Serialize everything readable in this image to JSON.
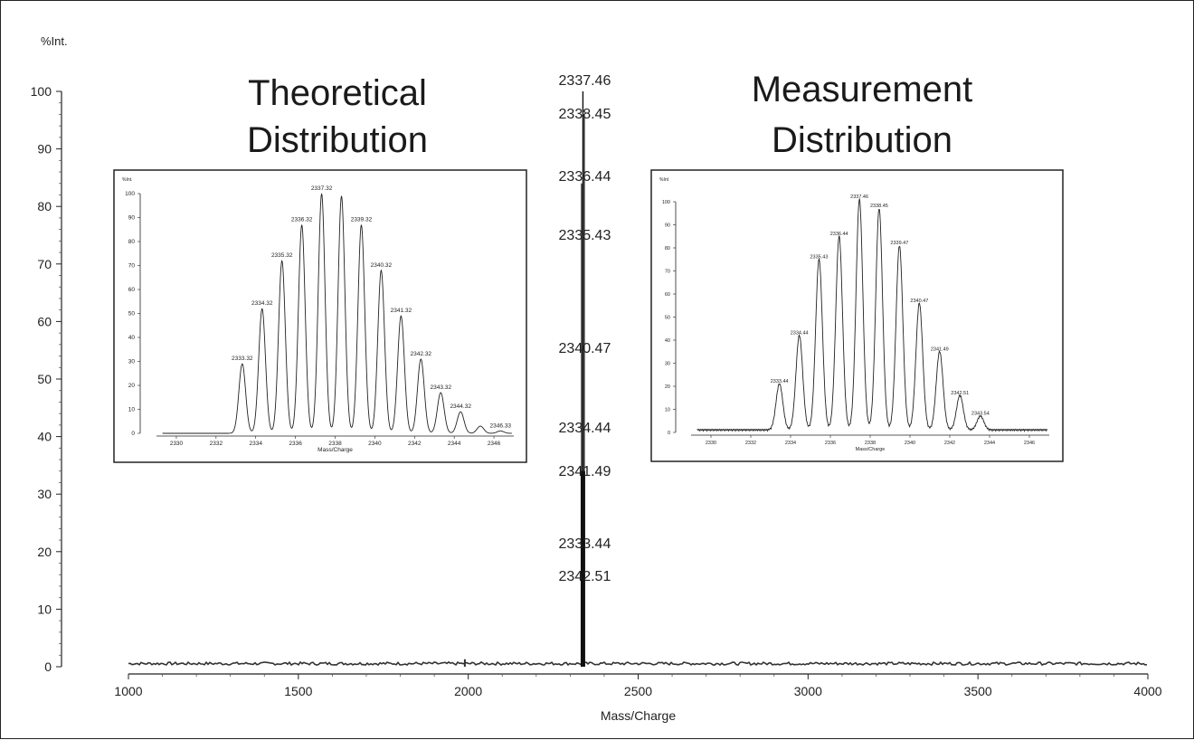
{
  "main_chart": {
    "y_unit_label": "%Int.",
    "xlabel": "Mass/Charge",
    "xticks": [
      1000,
      1500,
      2000,
      2500,
      3000,
      3500,
      4000
    ],
    "yticks": [
      0,
      10,
      20,
      30,
      40,
      50,
      60,
      70,
      80,
      90,
      100
    ],
    "xlim": [
      1000,
      4000
    ],
    "ylim": [
      0,
      100
    ]
  },
  "titles": {
    "theoretical": [
      "Theoretical",
      "Distribution"
    ],
    "measurement": [
      "Measurement",
      "Distribution"
    ]
  },
  "chart_data": [
    {
      "type": "line",
      "xlabel": "Mass/Charge",
      "ylabel": "%Int.",
      "xlim": [
        1000,
        4000
      ],
      "ylim": [
        0,
        100
      ],
      "peak_labels": [
        {
          "label": "2337.46",
          "value": 100
        },
        {
          "label": "2338.45",
          "value": 96
        },
        {
          "label": "2336.44",
          "value": 84
        },
        {
          "label": "2335.43",
          "value": 74
        },
        {
          "label": "2340.47",
          "value": 54
        },
        {
          "label": "2334.44",
          "value": 41
        },
        {
          "label": "2341.49",
          "value": 34
        },
        {
          "label": "2333.44",
          "value": 21
        },
        {
          "label": "2342.51",
          "value": 16
        }
      ],
      "peak_center": 2337.46,
      "baseline_level": 0.3
    },
    {
      "type": "line",
      "title": "Theoretical Distribution",
      "xlabel": "Mass/Charge",
      "ylabel": "%Int.",
      "xlim": [
        2329,
        2347
      ],
      "ylim": [
        0,
        100
      ],
      "xticks": [
        2330,
        2332,
        2334,
        2336,
        2338,
        2340,
        2342,
        2344,
        2346
      ],
      "yticks": [
        0,
        10,
        20,
        30,
        40,
        50,
        60,
        70,
        80,
        90,
        100
      ],
      "peaks": [
        {
          "x": 2333.32,
          "y": 29,
          "label": "2333.32"
        },
        {
          "x": 2334.32,
          "y": 52,
          "label": "2334.32"
        },
        {
          "x": 2335.32,
          "y": 72,
          "label": "2335.32"
        },
        {
          "x": 2336.32,
          "y": 87,
          "label": "2336.32"
        },
        {
          "x": 2337.32,
          "y": 100,
          "label": "2337.32"
        },
        {
          "x": 2338.32,
          "y": 99,
          "label": ""
        },
        {
          "x": 2339.32,
          "y": 87,
          "label": "2339.32"
        },
        {
          "x": 2340.32,
          "y": 68,
          "label": "2340.32"
        },
        {
          "x": 2341.32,
          "y": 49,
          "label": "2341.32"
        },
        {
          "x": 2342.32,
          "y": 31,
          "label": "2342.32"
        },
        {
          "x": 2343.32,
          "y": 17,
          "label": "2343.32"
        },
        {
          "x": 2344.32,
          "y": 9,
          "label": "2344.32"
        },
        {
          "x": 2345.32,
          "y": 3,
          "label": ""
        },
        {
          "x": 2346.33,
          "y": 1,
          "label": "2346.33"
        }
      ]
    },
    {
      "type": "line",
      "title": "Measurement Distribution",
      "xlabel": "Mass/Charge",
      "ylabel": "%Int",
      "xlim": [
        2329,
        2347
      ],
      "ylim": [
        0,
        100
      ],
      "xticks": [
        2330,
        2332,
        2334,
        2336,
        2338,
        2340,
        2342,
        2344,
        2346
      ],
      "yticks": [
        0,
        10,
        20,
        30,
        40,
        50,
        60,
        70,
        80,
        90,
        100
      ],
      "peaks": [
        {
          "x": 2333.44,
          "y": 20,
          "label": "2333.44"
        },
        {
          "x": 2334.44,
          "y": 41,
          "label": "2334.44"
        },
        {
          "x": 2335.43,
          "y": 74,
          "label": "2335.43"
        },
        {
          "x": 2336.44,
          "y": 84,
          "label": "2336.44"
        },
        {
          "x": 2337.46,
          "y": 100,
          "label": "2337.46"
        },
        {
          "x": 2338.45,
          "y": 96,
          "label": "2338.45"
        },
        {
          "x": 2339.47,
          "y": 80,
          "label": "2339.47"
        },
        {
          "x": 2340.47,
          "y": 55,
          "label": "2340.47"
        },
        {
          "x": 2341.49,
          "y": 34,
          "label": "2341.49"
        },
        {
          "x": 2342.51,
          "y": 15,
          "label": "2342.51"
        },
        {
          "x": 2343.54,
          "y": 6,
          "label": "2343.54"
        }
      ]
    }
  ]
}
